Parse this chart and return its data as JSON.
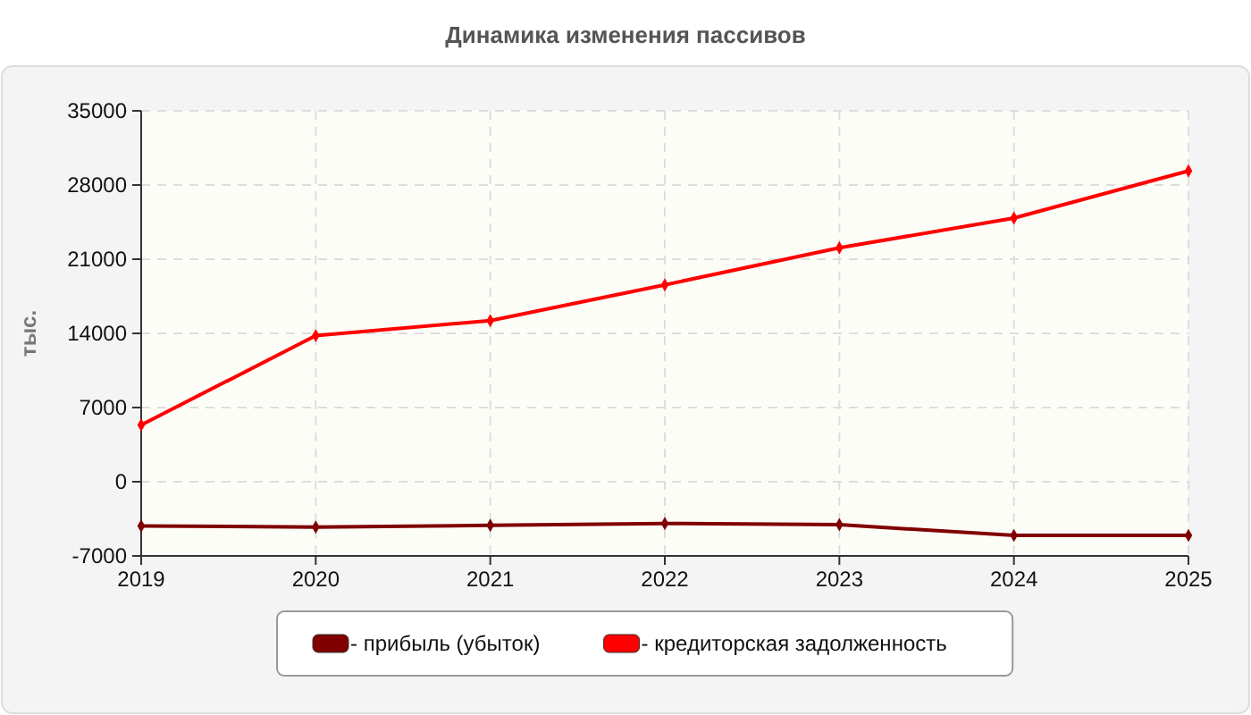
{
  "chart_data": {
    "type": "line",
    "title": "Динамика изменения пассивов",
    "ylabel": "тыс.",
    "x": [
      2019,
      2020,
      2021,
      2022,
      2023,
      2024,
      2025
    ],
    "xlim": [
      2019,
      2025
    ],
    "xticks": [
      2019,
      2020,
      2021,
      2022,
      2023,
      2024,
      2025
    ],
    "ylim": [
      -7000,
      35000
    ],
    "yticks": [
      -7000,
      0,
      7000,
      14000,
      21000,
      28000,
      35000
    ],
    "grid": true,
    "legend": "bottom",
    "marker": "diamond",
    "line_style": "solid",
    "series": [
      {
        "name": "- прибыль (убыток)",
        "color": "#800000",
        "values": [
          -4170,
          -4280,
          -4110,
          -3940,
          -4050,
          -5070,
          -5070
        ]
      },
      {
        "name": "- кредиторская задолженность",
        "color": "#ff0000",
        "values": [
          5350,
          13790,
          15200,
          18580,
          22070,
          24880,
          29330
        ]
      }
    ]
  }
}
